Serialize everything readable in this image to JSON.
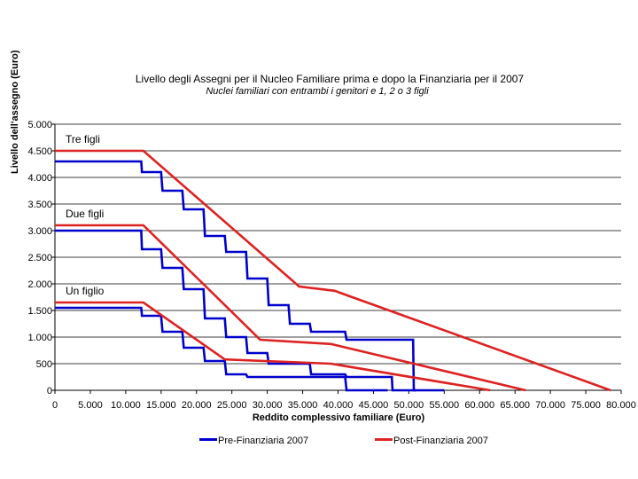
{
  "chart_data": {
    "type": "line",
    "title": "Livello degli Assegni per il Nucleo Familiare prima e dopo la Finanziaria per il 2007",
    "subtitle": "Nuclei familiari con entrambi i genitori e 1, 2 o 3 figli",
    "xlabel": "Reddito complessivo familiare (Euro)",
    "ylabel": "Livello dell'assegno (Euro)",
    "xlim": [
      0,
      80000
    ],
    "ylim": [
      0,
      5000
    ],
    "x_ticks": [
      0,
      5000,
      10000,
      15000,
      20000,
      25000,
      30000,
      35000,
      40000,
      45000,
      50000,
      55000,
      60000,
      65000,
      70000,
      75000,
      80000
    ],
    "x_tick_labels": [
      "0",
      "5.000",
      "10.000",
      "15.000",
      "20.000",
      "25.000",
      "30.000",
      "35.000",
      "40.000",
      "45.000",
      "50.000",
      "55.000",
      "60.000",
      "65.000",
      "70.000",
      "75.000",
      "80.000"
    ],
    "y_ticks": [
      0,
      500,
      1000,
      1500,
      2000,
      2500,
      3000,
      3500,
      4000,
      4500,
      5000
    ],
    "y_tick_labels": [
      "0",
      "500",
      "1.000",
      "1.500",
      "2.000",
      "2.500",
      "3.000",
      "3.500",
      "4.000",
      "4.500",
      "5.000"
    ],
    "grid": "horizontal",
    "legend_position": "bottom",
    "annotations": [
      {
        "text": "Tre figli",
        "x": 1500,
        "y": 4650
      },
      {
        "text": "Due figli",
        "x": 1500,
        "y": 3250
      },
      {
        "text": "Un figlio",
        "x": 1500,
        "y": 1800
      }
    ],
    "series": [
      {
        "name": "Pre-Finanziaria 2007",
        "color": "#0000cc",
        "group": "Tre figli",
        "points": [
          [
            0,
            4300
          ],
          [
            12200,
            4300
          ],
          [
            12300,
            4100
          ],
          [
            15000,
            4100
          ],
          [
            15200,
            3750
          ],
          [
            18000,
            3750
          ],
          [
            18200,
            3400
          ],
          [
            21000,
            3400
          ],
          [
            21200,
            2900
          ],
          [
            24000,
            2900
          ],
          [
            24200,
            2600
          ],
          [
            27000,
            2600
          ],
          [
            27200,
            2100
          ],
          [
            30000,
            2100
          ],
          [
            30200,
            1600
          ],
          [
            33000,
            1600
          ],
          [
            33200,
            1250
          ],
          [
            36000,
            1250
          ],
          [
            36200,
            1100
          ],
          [
            41000,
            1100
          ],
          [
            41200,
            950
          ],
          [
            50600,
            950
          ],
          [
            50700,
            0
          ],
          [
            55000,
            0
          ]
        ]
      },
      {
        "name": "Pre-Finanziaria 2007",
        "color": "#0000cc",
        "group": "Due figli",
        "points": [
          [
            0,
            3000
          ],
          [
            12200,
            3000
          ],
          [
            12300,
            2650
          ],
          [
            15000,
            2650
          ],
          [
            15200,
            2300
          ],
          [
            18000,
            2300
          ],
          [
            18200,
            1900
          ],
          [
            21000,
            1900
          ],
          [
            21200,
            1350
          ],
          [
            24000,
            1350
          ],
          [
            24200,
            1000
          ],
          [
            27000,
            1000
          ],
          [
            27200,
            700
          ],
          [
            30000,
            700
          ],
          [
            30200,
            500
          ],
          [
            36000,
            500
          ],
          [
            36200,
            300
          ],
          [
            41000,
            300
          ],
          [
            41200,
            250
          ],
          [
            47600,
            250
          ],
          [
            47700,
            0
          ],
          [
            51000,
            0
          ]
        ]
      },
      {
        "name": "Pre-Finanziaria 2007",
        "color": "#0000cc",
        "group": "Un figlio",
        "points": [
          [
            0,
            1550
          ],
          [
            12200,
            1550
          ],
          [
            12300,
            1400
          ],
          [
            15000,
            1400
          ],
          [
            15200,
            1100
          ],
          [
            18000,
            1100
          ],
          [
            18200,
            800
          ],
          [
            21000,
            800
          ],
          [
            21200,
            550
          ],
          [
            24000,
            550
          ],
          [
            24200,
            300
          ],
          [
            27000,
            300
          ],
          [
            27200,
            250
          ],
          [
            41000,
            250
          ],
          [
            41200,
            0
          ],
          [
            47000,
            0
          ]
        ]
      },
      {
        "name": "Post-Finanziaria 2007",
        "color": "#dd2222",
        "group": "Tre figli",
        "points": [
          [
            0,
            4500
          ],
          [
            12500,
            4500
          ],
          [
            34500,
            1950
          ],
          [
            39500,
            1870
          ],
          [
            78500,
            0
          ]
        ]
      },
      {
        "name": "Post-Finanziaria 2007",
        "color": "#dd2222",
        "group": "Due figli",
        "points": [
          [
            0,
            3100
          ],
          [
            12500,
            3100
          ],
          [
            29000,
            950
          ],
          [
            39000,
            870
          ],
          [
            66500,
            0
          ]
        ]
      },
      {
        "name": "Post-Finanziaria 2007",
        "color": "#dd2222",
        "group": "Un figlio",
        "points": [
          [
            0,
            1650
          ],
          [
            12500,
            1650
          ],
          [
            24000,
            580
          ],
          [
            39000,
            500
          ],
          [
            61500,
            0
          ]
        ]
      }
    ]
  }
}
